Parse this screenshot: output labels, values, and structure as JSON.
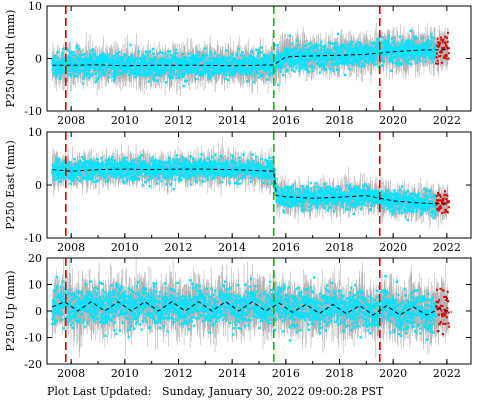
{
  "footer": {
    "label": "Plot Last Updated:",
    "datetime": "Sunday, January 30, 2022 09:00:28 PST"
  },
  "colors": {
    "raw_errorbars": "#b3b3b3",
    "clean_points": "#00e5ff",
    "recent_points": "#e00000",
    "trend_line": "#000000",
    "event_red": "#e00000",
    "event_green": "#22aa22"
  },
  "chart_data": [
    {
      "type": "scatter",
      "ylabel": "P250 North (mm)",
      "xlim": [
        2007.1,
        2022.9
      ],
      "ylim": [
        -10,
        10
      ],
      "yticks": [
        -10,
        0,
        10
      ],
      "xticks": [
        2008,
        2010,
        2012,
        2014,
        2016,
        2018,
        2020,
        2022
      ],
      "grid": false,
      "event_lines": [
        {
          "x": 2007.8,
          "color": "red"
        },
        {
          "x": 2015.55,
          "color": "green"
        },
        {
          "x": 2019.5,
          "color": "red"
        }
      ],
      "trend": {
        "x": [
          2007.3,
          2008,
          2009,
          2010,
          2011,
          2012,
          2013,
          2014,
          2015,
          2015.55,
          2016,
          2017,
          2018,
          2019,
          2020,
          2021,
          2022
        ],
        "y": [
          -1.3,
          -1.3,
          -1.2,
          -1.4,
          -1.3,
          -1.3,
          -1.3,
          -1.4,
          -1.3,
          -1.2,
          0.3,
          0.5,
          0.6,
          0.8,
          1.3,
          1.6,
          1.7
        ]
      },
      "scatter_sigma": 1.2,
      "errorbar_sigma": 2.5
    },
    {
      "type": "scatter",
      "ylabel": "P250 East (mm)",
      "xlim": [
        2007.1,
        2022.9
      ],
      "ylim": [
        -10,
        10
      ],
      "yticks": [
        -10,
        0,
        10
      ],
      "xticks": [
        2008,
        2010,
        2012,
        2014,
        2016,
        2018,
        2020,
        2022
      ],
      "grid": false,
      "event_lines": [
        {
          "x": 2007.8,
          "color": "red"
        },
        {
          "x": 2015.55,
          "color": "green"
        },
        {
          "x": 2019.5,
          "color": "red"
        }
      ],
      "trend": {
        "x": [
          2007.3,
          2008,
          2009,
          2010,
          2011,
          2012,
          2013,
          2014,
          2015,
          2015.55,
          2015.65,
          2016,
          2017,
          2018,
          2019,
          2020,
          2021,
          2022
        ],
        "y": [
          2.9,
          2.6,
          2.9,
          3.0,
          2.9,
          3.0,
          3.0,
          2.9,
          2.7,
          2.6,
          -2.0,
          -2.2,
          -2.5,
          -2.3,
          -2.0,
          -3.0,
          -3.4,
          -3.6
        ]
      },
      "scatter_sigma": 1.0,
      "errorbar_sigma": 2.0
    },
    {
      "type": "scatter",
      "ylabel": "P250 Up (mm)",
      "xlim": [
        2007.1,
        2022.9
      ],
      "ylim": [
        -20,
        20
      ],
      "yticks": [
        -20,
        -10,
        0,
        10,
        20
      ],
      "xticks": [
        2008,
        2010,
        2012,
        2014,
        2016,
        2018,
        2020,
        2022
      ],
      "grid": false,
      "event_lines": [
        {
          "x": 2007.8,
          "color": "red"
        },
        {
          "x": 2015.55,
          "color": "green"
        },
        {
          "x": 2019.5,
          "color": "red"
        }
      ],
      "trend": {
        "x": [
          2007.3,
          2007.75,
          2008.25,
          2008.75,
          2009.25,
          2009.75,
          2010.25,
          2010.75,
          2011.25,
          2011.75,
          2012.25,
          2012.75,
          2013.25,
          2013.75,
          2014.25,
          2014.75,
          2015.25,
          2015.75,
          2016.25,
          2016.75,
          2017.25,
          2017.75,
          2018.25,
          2018.75,
          2019.25,
          2019.75,
          2020.25,
          2020.75,
          2021.25,
          2021.75,
          2022.2
        ],
        "y": [
          1.5,
          3.5,
          0.0,
          3.5,
          0.0,
          3.5,
          0.0,
          3.5,
          0.0,
          3.5,
          0.0,
          3.5,
          0.0,
          3.5,
          0.0,
          3.5,
          0.0,
          3.0,
          -0.5,
          2.5,
          -1.0,
          2.5,
          -1.0,
          2.0,
          -1.5,
          2.0,
          -1.5,
          1.5,
          -1.5,
          1.0,
          -0.5
        ]
      },
      "scatter_sigma": 3.5,
      "errorbar_sigma": 7.0
    }
  ]
}
